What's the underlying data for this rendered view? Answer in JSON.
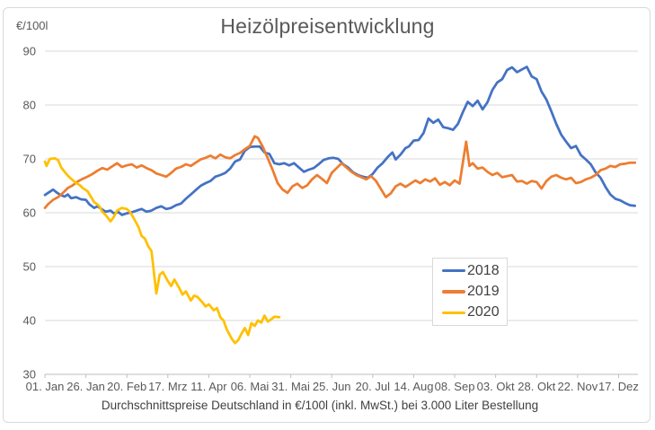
{
  "title": "Heizölpreisentwicklung",
  "y_unit_label": "€/100l",
  "caption": "Durchschnittspreise Deutschland in €/100l (inkl. MwSt.) bei 3.000 Liter Bestellung",
  "colors": {
    "series_2018": "#4472C4",
    "series_2019": "#ED7D31",
    "series_2020": "#FFC000",
    "gridline": "#d9d9d9",
    "axis_line": "#bfbfbf",
    "tick_label": "#595959",
    "title_text": "#595959",
    "caption_text": "#404040"
  },
  "chart_data": {
    "type": "line",
    "title": "Heizölpreisentwicklung",
    "ylabel": "€/100l",
    "xlabel": "",
    "ylim": [
      30,
      90
    ],
    "yticks": [
      90,
      80,
      70,
      60,
      50,
      40,
      30
    ],
    "xlim": [
      1,
      365
    ],
    "x_unit": "day of year",
    "xtick_days": [
      1,
      26,
      51,
      76,
      101,
      126,
      151,
      176,
      201,
      226,
      251,
      276,
      301,
      326,
      351
    ],
    "xtick_labels": [
      "01. Jan",
      "26. Jan",
      "20. Feb",
      "17. Mrz",
      "11. Apr",
      "06. Mai",
      "31. Mai",
      "25. Jun",
      "20. Jul",
      "14. Aug",
      "08. Sep",
      "03. Okt",
      "28. Okt",
      "22. Nov",
      "17. Dez"
    ],
    "grid": "horizontal",
    "legend_position": "center-right",
    "series": [
      {
        "name": "2018",
        "color": "#4472C4",
        "points": [
          [
            1,
            63.3
          ],
          [
            3,
            63.7
          ],
          [
            6,
            64.3
          ],
          [
            8,
            63.8
          ],
          [
            10,
            63.4
          ],
          [
            13,
            63.0
          ],
          [
            15,
            63.4
          ],
          [
            17,
            62.7
          ],
          [
            20,
            62.9
          ],
          [
            23,
            62.5
          ],
          [
            26,
            62.4
          ],
          [
            28,
            61.6
          ],
          [
            31,
            60.9
          ],
          [
            33,
            61.2
          ],
          [
            36,
            60.6
          ],
          [
            38,
            60.2
          ],
          [
            41,
            60.4
          ],
          [
            43,
            59.9
          ],
          [
            46,
            60.1
          ],
          [
            48,
            59.6
          ],
          [
            51,
            59.9
          ],
          [
            54,
            60.1
          ],
          [
            57,
            60.4
          ],
          [
            60,
            60.7
          ],
          [
            63,
            60.2
          ],
          [
            66,
            60.4
          ],
          [
            69,
            60.9
          ],
          [
            72,
            61.2
          ],
          [
            75,
            60.7
          ],
          [
            78,
            60.9
          ],
          [
            81,
            61.4
          ],
          [
            84,
            61.7
          ],
          [
            87,
            62.6
          ],
          [
            90,
            63.4
          ],
          [
            93,
            64.2
          ],
          [
            96,
            65.0
          ],
          [
            99,
            65.5
          ],
          [
            102,
            65.9
          ],
          [
            105,
            66.7
          ],
          [
            108,
            67.0
          ],
          [
            111,
            67.4
          ],
          [
            114,
            68.2
          ],
          [
            117,
            69.5
          ],
          [
            120,
            69.9
          ],
          [
            123,
            71.5
          ],
          [
            126,
            72.2
          ],
          [
            129,
            72.3
          ],
          [
            132,
            72.3
          ],
          [
            135,
            71.2
          ],
          [
            138,
            70.9
          ],
          [
            141,
            69.2
          ],
          [
            144,
            69.0
          ],
          [
            147,
            69.2
          ],
          [
            150,
            68.8
          ],
          [
            153,
            69.2
          ],
          [
            156,
            68.4
          ],
          [
            159,
            67.6
          ],
          [
            162,
            68.0
          ],
          [
            165,
            68.3
          ],
          [
            168,
            69.0
          ],
          [
            171,
            69.8
          ],
          [
            174,
            70.1
          ],
          [
            177,
            70.2
          ],
          [
            180,
            70.0
          ],
          [
            183,
            69.0
          ],
          [
            186,
            68.4
          ],
          [
            189,
            67.5
          ],
          [
            192,
            67.0
          ],
          [
            195,
            66.7
          ],
          [
            198,
            66.5
          ],
          [
            201,
            67.2
          ],
          [
            204,
            68.4
          ],
          [
            207,
            69.2
          ],
          [
            210,
            70.3
          ],
          [
            213,
            71.2
          ],
          [
            215,
            69.9
          ],
          [
            218,
            70.8
          ],
          [
            221,
            72.0
          ],
          [
            223,
            72.3
          ],
          [
            226,
            73.4
          ],
          [
            229,
            73.5
          ],
          [
            232,
            74.8
          ],
          [
            235,
            77.5
          ],
          [
            238,
            76.7
          ],
          [
            241,
            77.3
          ],
          [
            244,
            75.9
          ],
          [
            247,
            75.7
          ],
          [
            250,
            75.4
          ],
          [
            253,
            76.5
          ],
          [
            256,
            78.7
          ],
          [
            259,
            80.6
          ],
          [
            262,
            79.8
          ],
          [
            265,
            80.8
          ],
          [
            268,
            79.2
          ],
          [
            271,
            80.5
          ],
          [
            274,
            82.8
          ],
          [
            277,
            84.2
          ],
          [
            280,
            84.8
          ],
          [
            283,
            86.5
          ],
          [
            286,
            87.0
          ],
          [
            289,
            86.1
          ],
          [
            292,
            86.6
          ],
          [
            295,
            87.1
          ],
          [
            298,
            85.3
          ],
          [
            301,
            84.8
          ],
          [
            304,
            82.5
          ],
          [
            307,
            81.0
          ],
          [
            310,
            78.8
          ],
          [
            313,
            76.5
          ],
          [
            316,
            74.5
          ],
          [
            319,
            73.2
          ],
          [
            322,
            72.0
          ],
          [
            325,
            72.4
          ],
          [
            328,
            70.7
          ],
          [
            331,
            69.9
          ],
          [
            334,
            69.0
          ],
          [
            337,
            67.5
          ],
          [
            340,
            66.5
          ],
          [
            343,
            64.8
          ],
          [
            346,
            63.4
          ],
          [
            349,
            62.6
          ],
          [
            352,
            62.3
          ],
          [
            355,
            61.8
          ],
          [
            358,
            61.4
          ],
          [
            361,
            61.3
          ]
        ]
      },
      {
        "name": "2019",
        "color": "#ED7D31",
        "points": [
          [
            1,
            60.9
          ],
          [
            3,
            61.6
          ],
          [
            6,
            62.4
          ],
          [
            9,
            62.9
          ],
          [
            12,
            63.7
          ],
          [
            15,
            64.6
          ],
          [
            18,
            65.1
          ],
          [
            21,
            65.8
          ],
          [
            24,
            66.3
          ],
          [
            27,
            66.7
          ],
          [
            30,
            67.2
          ],
          [
            33,
            67.8
          ],
          [
            36,
            68.3
          ],
          [
            39,
            68.0
          ],
          [
            42,
            68.6
          ],
          [
            45,
            69.2
          ],
          [
            48,
            68.5
          ],
          [
            51,
            68.8
          ],
          [
            54,
            69.0
          ],
          [
            57,
            68.4
          ],
          [
            60,
            68.8
          ],
          [
            63,
            68.3
          ],
          [
            66,
            67.9
          ],
          [
            69,
            67.3
          ],
          [
            72,
            67.0
          ],
          [
            75,
            66.7
          ],
          [
            78,
            67.4
          ],
          [
            81,
            68.2
          ],
          [
            84,
            68.5
          ],
          [
            87,
            69.0
          ],
          [
            90,
            68.7
          ],
          [
            93,
            69.3
          ],
          [
            96,
            69.9
          ],
          [
            99,
            70.2
          ],
          [
            102,
            70.6
          ],
          [
            105,
            70.1
          ],
          [
            108,
            70.8
          ],
          [
            111,
            70.3
          ],
          [
            114,
            70.1
          ],
          [
            117,
            70.7
          ],
          [
            120,
            71.1
          ],
          [
            123,
            71.8
          ],
          [
            126,
            72.4
          ],
          [
            129,
            74.2
          ],
          [
            131,
            73.9
          ],
          [
            134,
            72.2
          ],
          [
            137,
            70.1
          ],
          [
            140,
            67.9
          ],
          [
            143,
            65.5
          ],
          [
            146,
            64.3
          ],
          [
            149,
            63.7
          ],
          [
            152,
            64.9
          ],
          [
            155,
            65.4
          ],
          [
            158,
            64.6
          ],
          [
            161,
            65.1
          ],
          [
            164,
            66.2
          ],
          [
            167,
            67.0
          ],
          [
            170,
            66.3
          ],
          [
            173,
            65.5
          ],
          [
            176,
            67.4
          ],
          [
            179,
            68.3
          ],
          [
            182,
            69.2
          ],
          [
            185,
            68.4
          ],
          [
            188,
            67.6
          ],
          [
            191,
            67.0
          ],
          [
            194,
            66.6
          ],
          [
            197,
            66.2
          ],
          [
            200,
            66.8
          ],
          [
            203,
            65.9
          ],
          [
            206,
            64.4
          ],
          [
            209,
            62.9
          ],
          [
            212,
            63.6
          ],
          [
            215,
            64.9
          ],
          [
            218,
            65.4
          ],
          [
            221,
            64.8
          ],
          [
            224,
            65.4
          ],
          [
            227,
            66.0
          ],
          [
            230,
            65.5
          ],
          [
            233,
            66.2
          ],
          [
            236,
            65.8
          ],
          [
            239,
            66.4
          ],
          [
            242,
            65.2
          ],
          [
            245,
            65.7
          ],
          [
            248,
            65.1
          ],
          [
            251,
            66.0
          ],
          [
            254,
            65.4
          ],
          [
            258,
            73.2
          ],
          [
            260,
            68.7
          ],
          [
            262,
            69.2
          ],
          [
            265,
            68.2
          ],
          [
            268,
            68.4
          ],
          [
            271,
            67.6
          ],
          [
            274,
            67.0
          ],
          [
            277,
            67.4
          ],
          [
            280,
            66.6
          ],
          [
            283,
            66.8
          ],
          [
            286,
            67.0
          ],
          [
            289,
            65.8
          ],
          [
            292,
            65.9
          ],
          [
            295,
            65.4
          ],
          [
            298,
            65.9
          ],
          [
            301,
            65.7
          ],
          [
            304,
            64.5
          ],
          [
            307,
            65.9
          ],
          [
            310,
            66.7
          ],
          [
            313,
            67.0
          ],
          [
            316,
            66.5
          ],
          [
            319,
            66.2
          ],
          [
            322,
            66.5
          ],
          [
            325,
            65.5
          ],
          [
            328,
            65.7
          ],
          [
            331,
            66.2
          ],
          [
            334,
            66.5
          ],
          [
            337,
            67.0
          ],
          [
            340,
            67.9
          ],
          [
            343,
            68.2
          ],
          [
            346,
            68.7
          ],
          [
            349,
            68.5
          ],
          [
            352,
            69.0
          ],
          [
            355,
            69.1
          ],
          [
            358,
            69.3
          ],
          [
            361,
            69.3
          ]
        ]
      },
      {
        "name": "2020",
        "color": "#FFC000",
        "points": [
          [
            1,
            69.5
          ],
          [
            2,
            68.7
          ],
          [
            4,
            70.0
          ],
          [
            7,
            70.1
          ],
          [
            9,
            69.8
          ],
          [
            11,
            68.4
          ],
          [
            13,
            67.6
          ],
          [
            15,
            66.9
          ],
          [
            17,
            66.3
          ],
          [
            20,
            65.5
          ],
          [
            22,
            65.2
          ],
          [
            24,
            64.6
          ],
          [
            27,
            64.0
          ],
          [
            29,
            63.0
          ],
          [
            31,
            62.0
          ],
          [
            34,
            61.3
          ],
          [
            36,
            60.2
          ],
          [
            38,
            59.6
          ],
          [
            41,
            58.4
          ],
          [
            43,
            59.2
          ],
          [
            45,
            60.4
          ],
          [
            48,
            60.9
          ],
          [
            51,
            60.7
          ],
          [
            53,
            60.1
          ],
          [
            55,
            59.1
          ],
          [
            58,
            57.4
          ],
          [
            60,
            55.7
          ],
          [
            62,
            55.2
          ],
          [
            64,
            53.8
          ],
          [
            66,
            52.9
          ],
          [
            69,
            45.0
          ],
          [
            71,
            48.5
          ],
          [
            73,
            49.0
          ],
          [
            76,
            47.3
          ],
          [
            78,
            46.4
          ],
          [
            80,
            47.6
          ],
          [
            83,
            46.0
          ],
          [
            85,
            44.8
          ],
          [
            87,
            45.4
          ],
          [
            90,
            43.7
          ],
          [
            92,
            44.6
          ],
          [
            94,
            44.4
          ],
          [
            97,
            43.4
          ],
          [
            99,
            42.6
          ],
          [
            101,
            43.0
          ],
          [
            104,
            41.9
          ],
          [
            106,
            42.3
          ],
          [
            108,
            40.6
          ],
          [
            110,
            40.0
          ],
          [
            112,
            38.3
          ],
          [
            115,
            36.6
          ],
          [
            117,
            35.8
          ],
          [
            119,
            36.4
          ],
          [
            121,
            37.6
          ],
          [
            123,
            38.6
          ],
          [
            125,
            37.3
          ],
          [
            127,
            39.5
          ],
          [
            129,
            39.0
          ],
          [
            131,
            40.0
          ],
          [
            133,
            39.6
          ],
          [
            135,
            40.9
          ],
          [
            137,
            39.8
          ],
          [
            139,
            40.2
          ],
          [
            141,
            40.7
          ],
          [
            144,
            40.6
          ]
        ]
      }
    ]
  }
}
